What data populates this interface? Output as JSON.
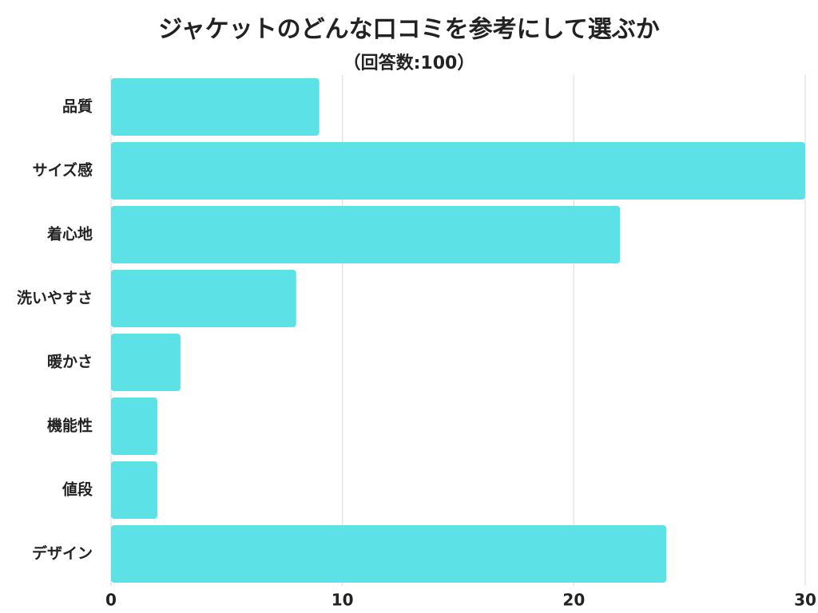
{
  "chart_data": {
    "type": "bar",
    "orientation": "horizontal",
    "title": "ジャケットのどんな口コミを参考にして選ぶか",
    "subtitle": "（回答数:100）",
    "categories": [
      "品質",
      "サイズ感",
      "着心地",
      "洗いやすさ",
      "暖かさ",
      "機能性",
      "値段",
      "デザイン"
    ],
    "values": [
      9,
      30,
      22,
      8,
      3,
      2,
      2,
      24
    ],
    "color": "#5ce1e6",
    "xlim": [
      0,
      30
    ],
    "xticks": [
      0,
      10,
      20,
      30
    ],
    "grid": true
  }
}
